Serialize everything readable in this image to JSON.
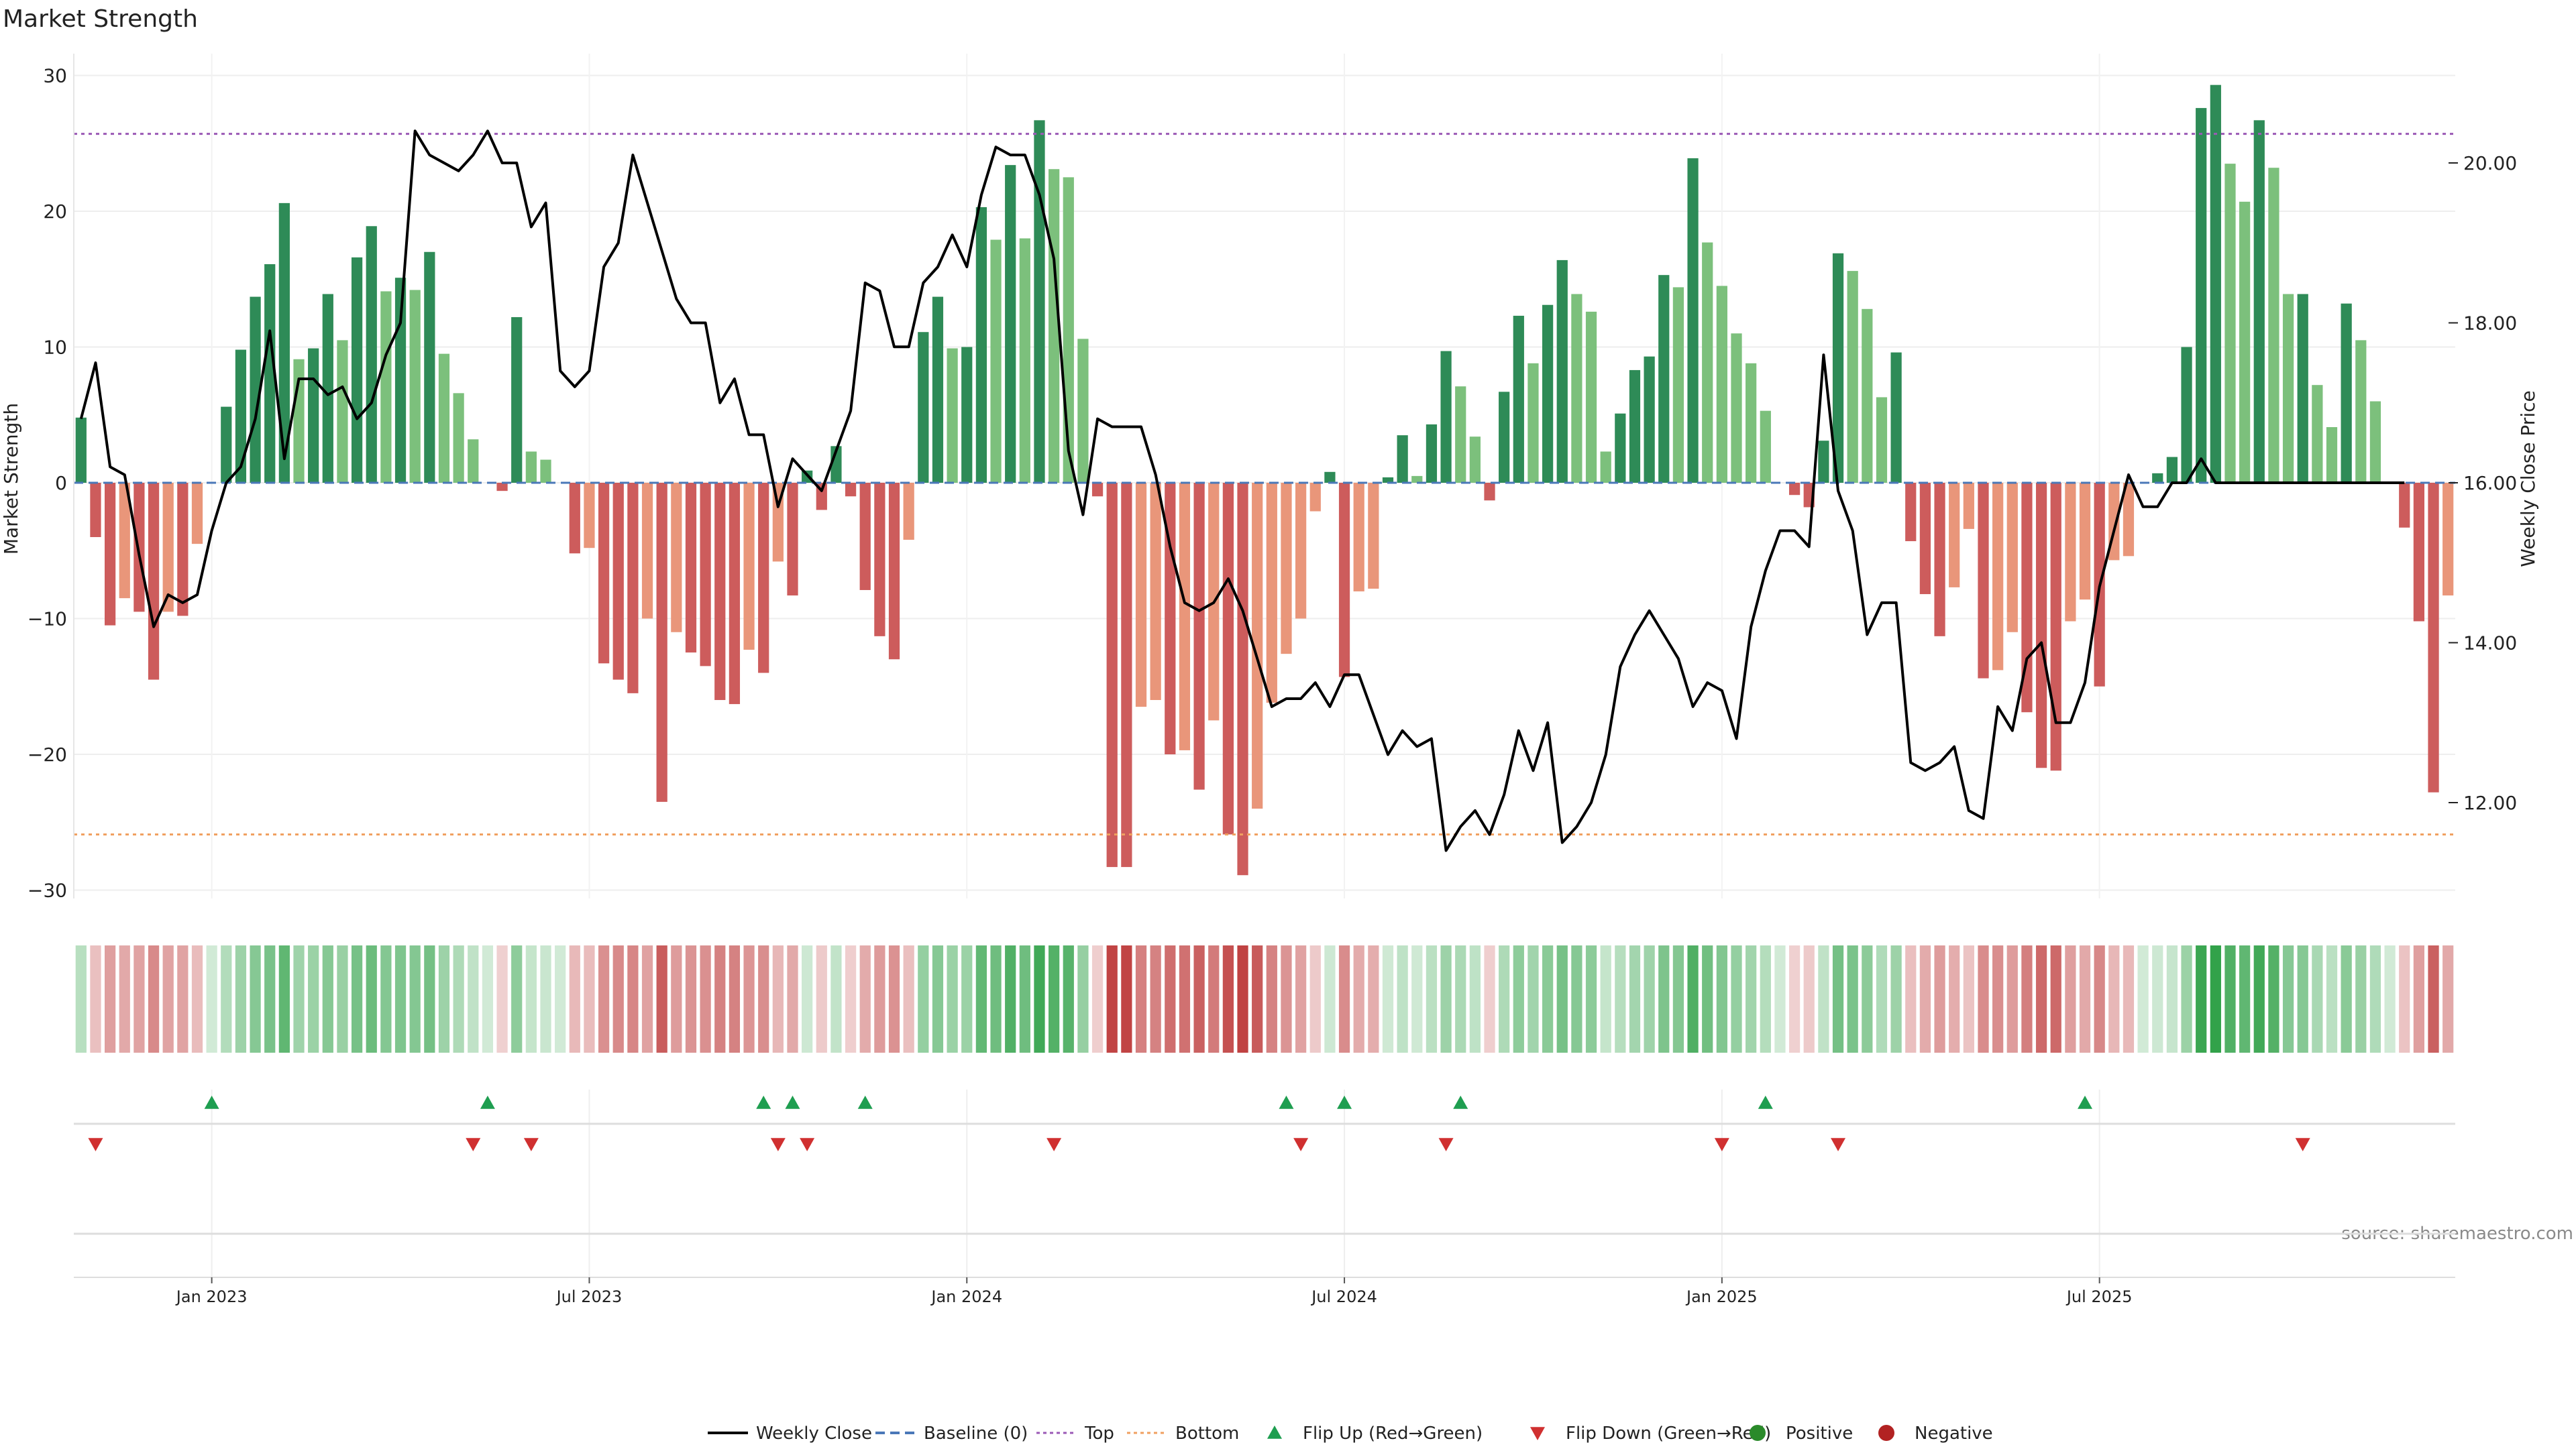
{
  "title": "Market Strength",
  "source_note": "source: sharemaestro.com",
  "colors": {
    "pos_dark": "#2e8b57",
    "pos_light": "#7cc07c",
    "neg_dark": "#cd5c5c",
    "neg_light": "#e9967a",
    "line": "#000000",
    "baseline": "#4a78b8",
    "top": "#9b59b6",
    "bottom": "#f0a060",
    "flip_up": "#1e9e50",
    "flip_down": "#d03030",
    "positive_dot": "#2a8a2a",
    "negative_dot": "#b22222"
  },
  "chart_data": {
    "type": "bar",
    "title": "Market Strength",
    "ylabel": "Market Strength",
    "y2label": "Weekly Close Price",
    "ylim": [
      -31,
      30.5
    ],
    "y2lim": [
      11.1,
      21.1
    ],
    "yticks": [
      -30,
      -20,
      -10,
      0,
      10,
      20,
      30
    ],
    "ytick_labels": [
      "−30",
      "−20",
      "−10",
      "0",
      "10",
      "20",
      "30"
    ],
    "y2ticks": [
      12,
      14,
      16,
      18,
      20
    ],
    "y2tick_labels": [
      "12.00",
      "14.00",
      "16.00",
      "18.00",
      "20.00"
    ],
    "x_tick_labels": [
      "Jan 2023",
      "Jul 2023",
      "Jan 2024",
      "Jul 2024",
      "Jan 2025",
      "Jul 2025"
    ],
    "x_tick_week_index": [
      9,
      35,
      61,
      87,
      113,
      139
    ],
    "thresholds": {
      "top": 25.7,
      "bottom": -25.9,
      "baseline": 0
    },
    "strength": [
      4.8,
      -4,
      -10.5,
      -8.5,
      -9.5,
      -14.5,
      -9.5,
      -9.8,
      -4.5,
      0,
      5.6,
      9.8,
      13.7,
      16.1,
      20.6,
      9.1,
      9.9,
      13.9,
      10.5,
      16.6,
      18.9,
      14.1,
      15.1,
      14.2,
      17,
      9.5,
      6.6,
      3.2,
      0,
      -0.6,
      12.2,
      2.3,
      1.7,
      0,
      -5.2,
      -4.8,
      -13.3,
      -14.5,
      -15.5,
      -10,
      -23.5,
      -11,
      -12.5,
      -13.5,
      -16,
      -16.3,
      -12.3,
      -14,
      -5.8,
      -8.3,
      0.9,
      -2,
      2.7,
      -1,
      -7.9,
      -11.3,
      -13,
      -4.2,
      11.1,
      13.7,
      9.9,
      10,
      20.3,
      17.9,
      23.4,
      18,
      26.7,
      23.1,
      22.5,
      10.6,
      -1,
      -28.3,
      -28.3,
      -16.5,
      -16,
      -20,
      -19.7,
      -22.6,
      -17.5,
      -25.9,
      -28.9,
      -24,
      -16.2,
      -12.6,
      -10,
      -2.1,
      0.8,
      -14.3,
      -8,
      -7.8,
      0.4,
      3.5,
      0.5,
      4.3,
      9.7,
      7.1,
      3.4,
      -1.3,
      6.7,
      12.3,
      8.8,
      13.1,
      16.4,
      13.9,
      12.6,
      2.3,
      5.1,
      8.3,
      9.3,
      15.3,
      14.4,
      23.9,
      17.7,
      14.5,
      11,
      8.8,
      5.3,
      0,
      -0.9,
      -1.8,
      3.1,
      16.9,
      15.6,
      12.8,
      6.3,
      9.6,
      -4.3,
      -8.2,
      -11.3,
      -7.7,
      -3.4,
      -14.4,
      -13.8,
      -11,
      -16.9,
      -21,
      -21.2,
      -10.2,
      -8.6,
      -15,
      -5.7,
      -5.4,
      0,
      0.7,
      1.9,
      10,
      27.6,
      29.3,
      23.5,
      20.7,
      26.7,
      23.2,
      13.9,
      13.9,
      7.2,
      4.1,
      13.2,
      10.5,
      6,
      0,
      -3.3,
      -10.2,
      -22.8,
      -8.3
    ],
    "weekly_close": [
      16.8,
      17.5,
      16.2,
      16.1,
      15.1,
      14.2,
      14.6,
      14.5,
      14.6,
      15.4,
      16,
      16.2,
      16.8,
      17.9,
      16.3,
      17.3,
      17.3,
      17.1,
      17.2,
      16.8,
      17,
      17.6,
      18,
      20.4,
      20.1,
      20,
      19.9,
      20.1,
      20.4,
      20,
      20,
      19.2,
      19.5,
      17.4,
      17.2,
      17.4,
      18.7,
      19,
      20.1,
      19.5,
      18.9,
      18.3,
      18,
      18,
      17,
      17.3,
      16.6,
      16.6,
      15.7,
      16.3,
      16.1,
      15.9,
      16.4,
      16.9,
      18.5,
      18.4,
      17.7,
      17.7,
      18.5,
      18.7,
      19.1,
      18.7,
      19.6,
      20.2,
      20.1,
      20.1,
      19.6,
      18.8,
      16.4,
      15.6,
      16.8,
      16.7,
      16.7,
      16.7,
      16.1,
      15.2,
      14.5,
      14.4,
      14.5,
      14.8,
      14.4,
      13.8,
      13.2,
      13.3,
      13.3,
      13.5,
      13.2,
      13.6,
      13.6,
      13.1,
      12.6,
      12.9,
      12.7,
      12.8,
      11.4,
      11.7,
      11.9,
      11.6,
      12.1,
      12.9,
      12.4,
      13,
      11.5,
      11.7,
      12,
      12.6,
      13.7,
      14.1,
      14.4,
      14.1,
      13.8,
      13.2,
      13.5,
      13.4,
      12.8,
      14.2,
      14.9,
      15.4,
      15.4,
      15.2,
      17.6,
      15.9,
      15.4,
      14.1,
      14.5,
      14.5,
      12.5,
      12.4,
      12.5,
      12.7,
      11.9,
      11.8,
      13.2,
      12.9,
      13.8,
      14,
      13,
      13,
      13.5,
      14.7,
      15.4,
      16.1,
      15.7,
      15.7,
      16,
      16,
      16.3,
      16,
      16,
      16,
      16,
      16,
      16,
      16,
      16,
      16,
      16,
      16,
      16,
      16,
      16
    ],
    "flip_up_week_index": [
      9,
      28,
      47,
      49,
      54,
      83,
      87,
      95,
      116,
      138
    ],
    "flip_down_week_index": [
      1,
      27,
      31,
      48,
      50,
      67,
      84,
      94,
      113,
      121,
      153
    ],
    "series": [
      {
        "name": "Weekly Close"
      },
      {
        "name": "Baseline (0)"
      },
      {
        "name": "Top"
      },
      {
        "name": "Bottom"
      },
      {
        "name": "Flip Up (Red→Green)"
      },
      {
        "name": "Flip Down (Green→Red)"
      },
      {
        "name": "Positive"
      },
      {
        "name": "Negative"
      }
    ]
  },
  "legend": [
    {
      "label": "Weekly Close",
      "kind": "line"
    },
    {
      "label": "Baseline (0)",
      "kind": "baseline"
    },
    {
      "label": "Top",
      "kind": "top"
    },
    {
      "label": "Bottom",
      "kind": "bottom"
    },
    {
      "label": "Flip Up (Red→Green)",
      "kind": "flip_up"
    },
    {
      "label": "Flip Down (Green→Red)",
      "kind": "flip_down"
    },
    {
      "label": "Positive",
      "kind": "positive"
    },
    {
      "label": "Negative",
      "kind": "negative"
    }
  ]
}
